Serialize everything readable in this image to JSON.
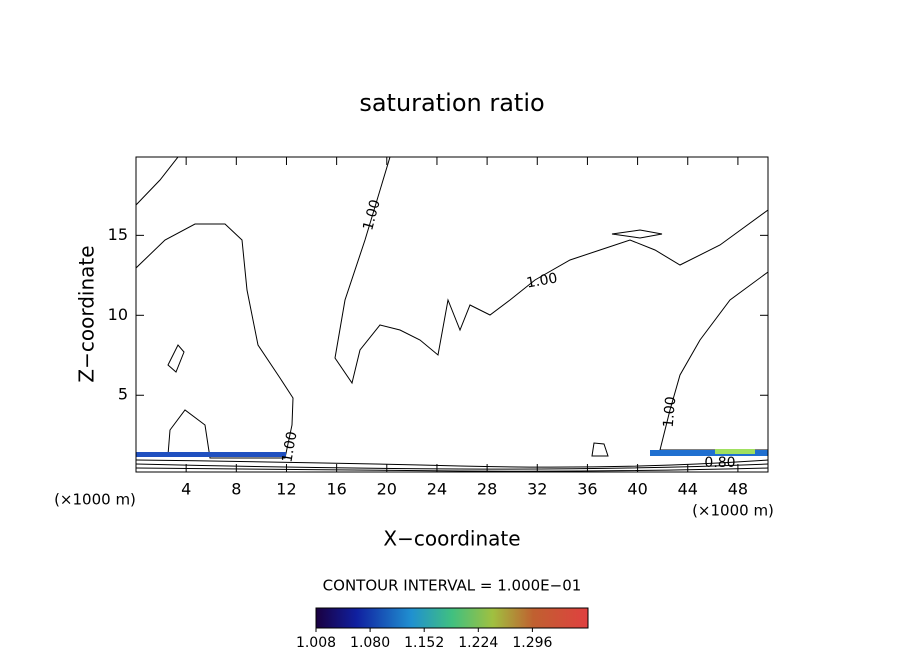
{
  "chart_data": {
    "type": "contour",
    "title": "saturation ratio",
    "x_label": "X−coordinate",
    "y_label": "Z−coordinate",
    "x_unit": "(×1000 m)",
    "y_unit": "(×1000 m)",
    "xlim": [
      0,
      50.4
    ],
    "ylim": [
      0.2,
      19.9
    ],
    "xticks": [
      4,
      8,
      12,
      16,
      20,
      24,
      28,
      32,
      36,
      40,
      44,
      48
    ],
    "yticks": [
      5,
      10,
      15
    ],
    "fill_color": "#7a00aa",
    "contour_labels": [
      "1.00",
      "1.00",
      "1.00",
      "1.00",
      "0.80"
    ],
    "contour_interval_label": "CONTOUR INTERVAL = 1.000E−01",
    "colorbar": {
      "lim": [
        1.008,
        1.37
      ],
      "ticks": [
        1.008,
        {
          "value": 1.08,
          "label": "1.080"
        },
        1.152,
        1.224,
        1.296
      ]
    }
  }
}
